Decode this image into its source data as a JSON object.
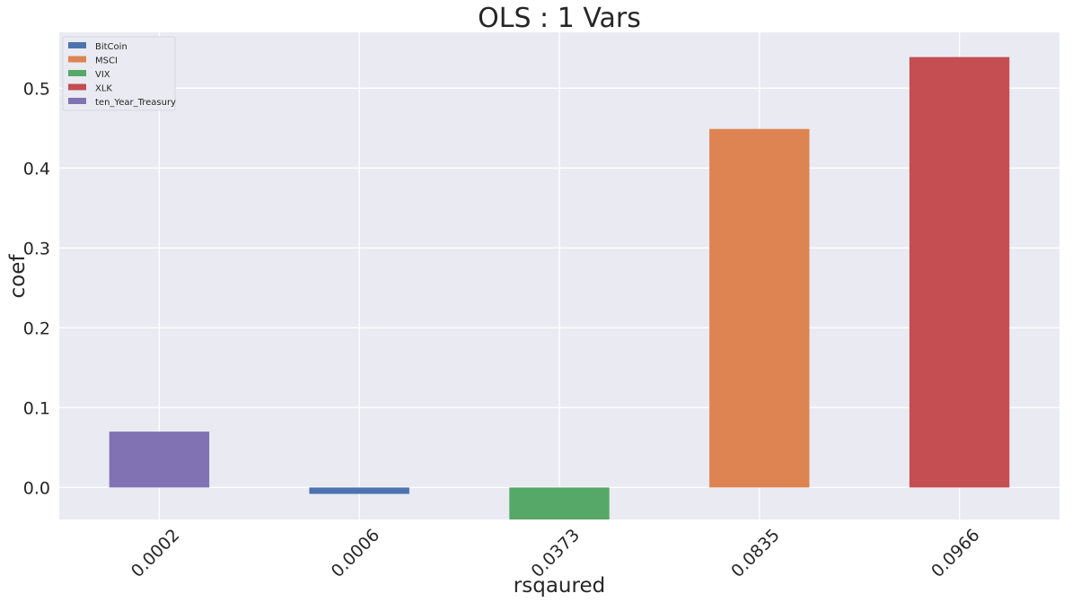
{
  "chart_data": {
    "type": "bar",
    "title": "OLS : 1 Vars",
    "xlabel": "rsqaured",
    "ylabel": "coef",
    "categories": [
      "0.0002",
      "0.0006",
      "0.0373",
      "0.0835",
      "0.0966"
    ],
    "series": [
      {
        "name": "BitCoin",
        "color": "#4c72b0",
        "values": [
          null,
          -0.008,
          null,
          null,
          null
        ]
      },
      {
        "name": "MSCI",
        "color": "#dd8452",
        "values": [
          null,
          null,
          null,
          0.449,
          null
        ]
      },
      {
        "name": "VIX",
        "color": "#55a868",
        "values": [
          null,
          null,
          -0.045,
          null,
          null
        ]
      },
      {
        "name": "XLK",
        "color": "#c44e52",
        "values": [
          null,
          null,
          null,
          null,
          0.539
        ]
      },
      {
        "name": "ten_Year_Treasury",
        "color": "#8172b3",
        "values": [
          0.07,
          null,
          null,
          null,
          null
        ]
      }
    ],
    "ylim": [
      -0.04,
      0.57
    ],
    "yticks": [
      "0.0",
      "0.1",
      "0.2",
      "0.3",
      "0.4",
      "0.5"
    ],
    "grid": true,
    "legend_position": "top-left",
    "background": "#eaeaf2"
  }
}
